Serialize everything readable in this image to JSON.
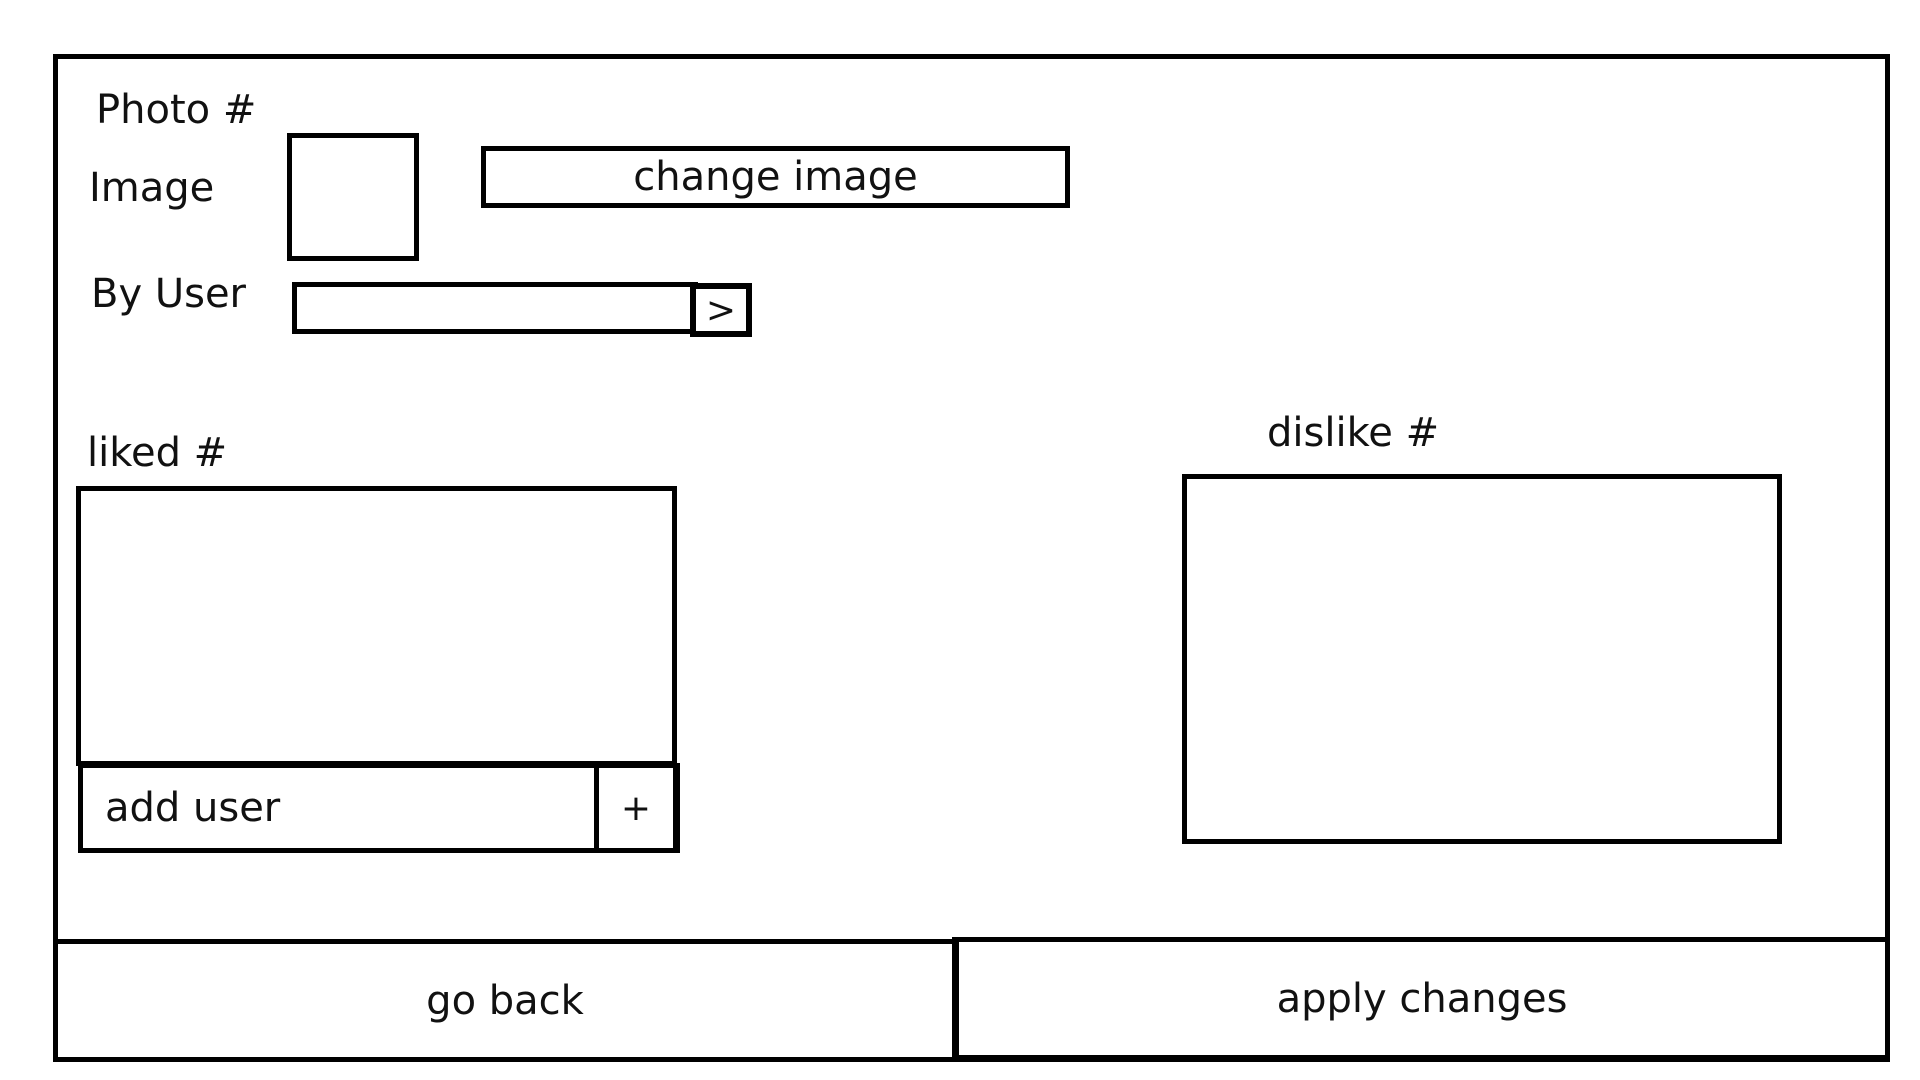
{
  "header": {
    "photo_label": "Photo #",
    "image_label": "Image",
    "change_image_label": "change image",
    "by_user_label": "By User",
    "by_user_value": "",
    "go_icon": "chevron-right-icon",
    "go_glyph": ">"
  },
  "liked": {
    "label": "liked #",
    "add_placeholder": "add user",
    "add_icon": "plus-icon",
    "add_glyph": "+"
  },
  "disliked": {
    "label": "dislike #"
  },
  "footer": {
    "back_label": "go back",
    "apply_label": "apply changes"
  }
}
